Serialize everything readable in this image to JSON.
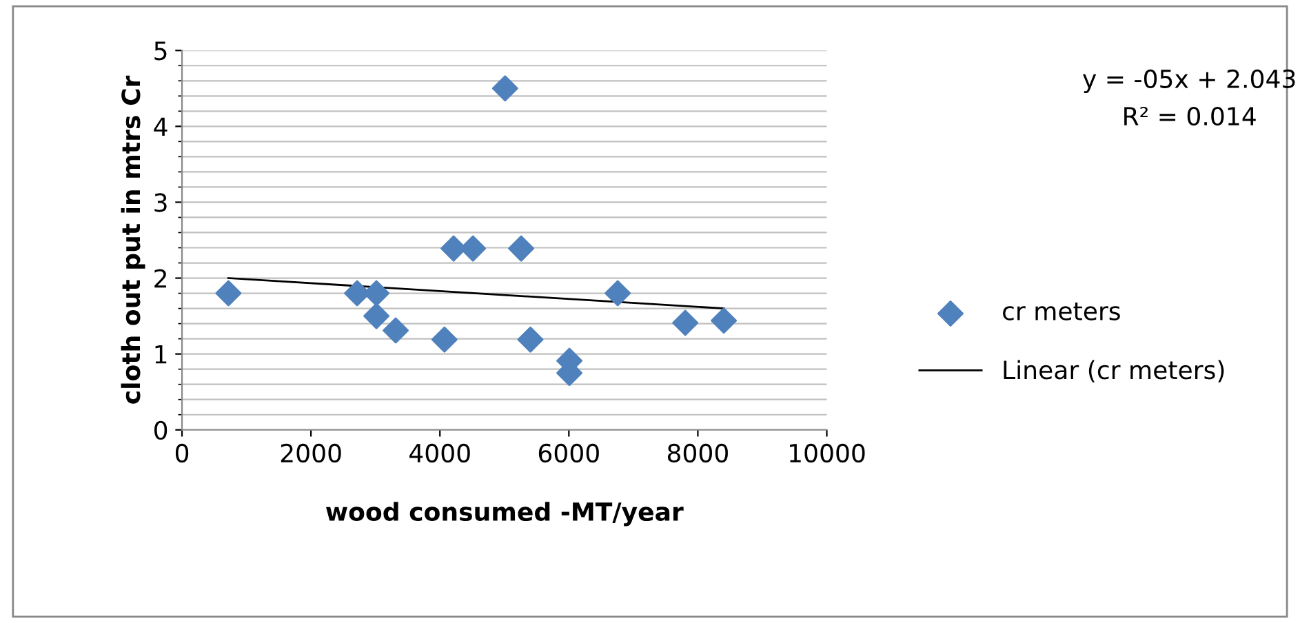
{
  "chart_data": {
    "type": "scatter",
    "xlabel": "wood consumed -MT/year",
    "ylabel": "cloth out put in mtrs Cr",
    "xlim": [
      0,
      10000
    ],
    "xticks": [
      0,
      2000,
      4000,
      6000,
      8000,
      10000
    ],
    "ylim": [
      0,
      5
    ],
    "yticks": [
      0,
      1,
      2,
      3,
      4,
      5
    ],
    "grid": "y",
    "legend": "right",
    "marker": "diamond",
    "annotations": [
      "y = -05x + 2.043",
      "R² = 0.014"
    ],
    "series": [
      {
        "name": "cr meters",
        "color": "#4f81bd",
        "x": [
          720,
          2716,
          3015,
          3015,
          3314,
          4070,
          4212,
          4512,
          5011,
          5260,
          5403,
          6008,
          6008,
          6757,
          7805,
          8403
        ],
        "values": [
          1.8,
          1.8,
          1.8,
          1.5,
          1.31,
          1.19,
          2.39,
          2.39,
          4.5,
          2.39,
          1.19,
          0.91,
          0.75,
          1.8,
          1.41,
          1.44
        ]
      },
      {
        "name": "Linear (cr meters)",
        "type": "line",
        "color": "#000000",
        "marker": "none",
        "x": [
          720,
          8403
        ],
        "values": [
          2.0,
          1.6
        ]
      }
    ]
  }
}
